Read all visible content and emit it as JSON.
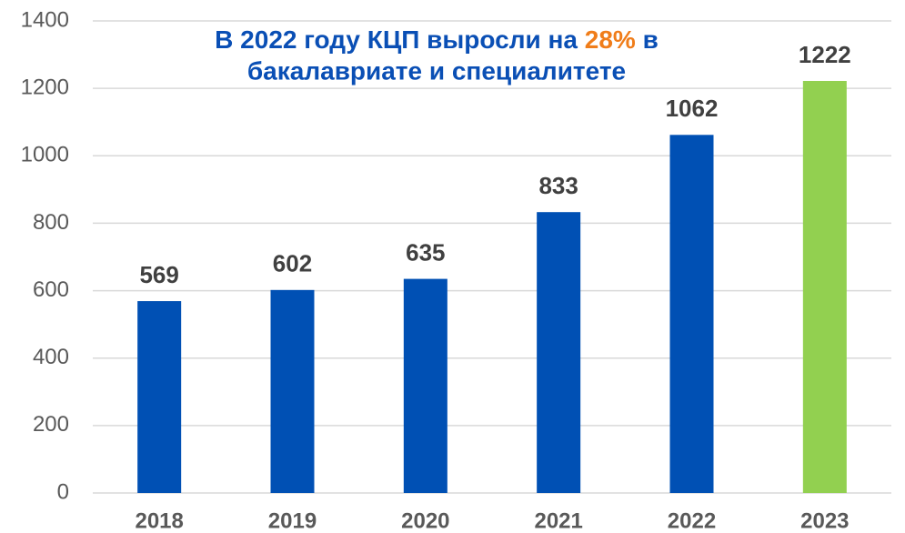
{
  "chart_data": {
    "type": "bar",
    "title": [
      "В 2022 году КЦП выросли на",
      "28%",
      "в",
      "бакалавриате и специалитете"
    ],
    "title_color": "#0a4fb5",
    "highlight_color": "#f07d1a",
    "categories": [
      "2018",
      "2019",
      "2020",
      "2021",
      "2022",
      "2023"
    ],
    "values": [
      569,
      602,
      635,
      833,
      1062,
      1222
    ],
    "colors": [
      "#0050b4",
      "#0050b4",
      "#0050b4",
      "#0050b4",
      "#0050b4",
      "#92d050"
    ],
    "ylim": [
      0,
      1400
    ],
    "yticks": [
      0,
      200,
      400,
      600,
      800,
      1000,
      1200,
      1400
    ],
    "grid": true
  }
}
